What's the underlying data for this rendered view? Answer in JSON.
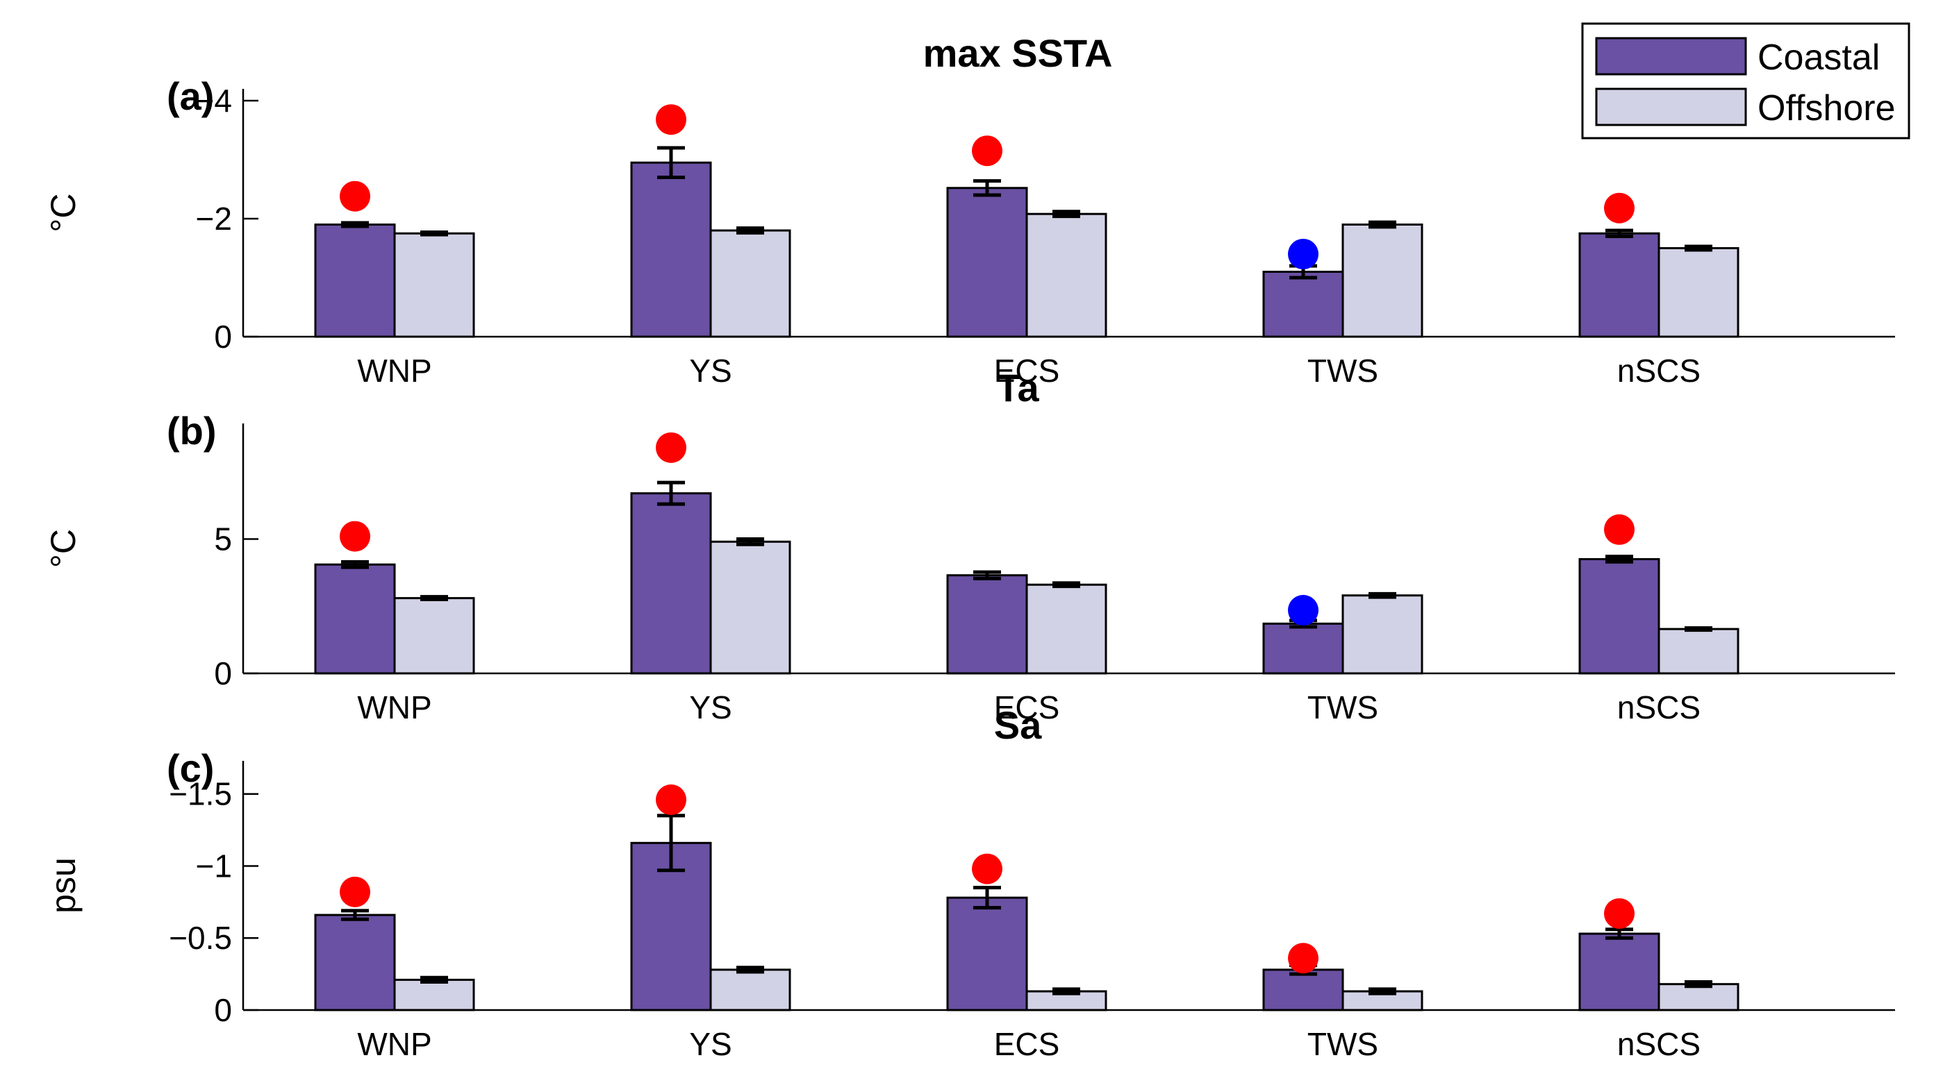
{
  "colors": {
    "coastal": "#6a51a3",
    "offshore": "#d2d2e6",
    "marker_red": "#ff0000",
    "marker_blue": "#0000ff"
  },
  "legend": {
    "placement": "top-right",
    "entries": [
      "Coastal",
      "Offshore"
    ]
  },
  "chart_data": [
    {
      "type": "bar",
      "panel_label": "(a)",
      "title": "max SSTA",
      "ylabel": "°C",
      "ylim": [
        0,
        -4.2
      ],
      "reversed_y": true,
      "yticks": [
        0,
        -2,
        -4
      ],
      "ytick_labels": [
        "0",
        "−2",
        "−4"
      ],
      "categories": [
        "WNP",
        "YS",
        "ECS",
        "TWS",
        "nSCS"
      ],
      "series": [
        {
          "name": "Coastal",
          "values": [
            -1.9,
            -2.95,
            -2.52,
            -1.1,
            -1.75
          ],
          "errors": [
            0.03,
            0.25,
            0.12,
            0.1,
            0.05
          ]
        },
        {
          "name": "Offshore",
          "values": [
            -1.75,
            -1.8,
            -2.08,
            -1.9,
            -1.5
          ],
          "errors": [
            0.02,
            0.04,
            0.04,
            0.04,
            0.03
          ]
        }
      ],
      "markers": [
        {
          "category": "WNP",
          "value": -2.38,
          "color": "red"
        },
        {
          "category": "YS",
          "value": -3.68,
          "color": "red"
        },
        {
          "category": "ECS",
          "value": -3.15,
          "color": "red"
        },
        {
          "category": "TWS",
          "value": -1.4,
          "color": "blue"
        },
        {
          "category": "nSCS",
          "value": -2.18,
          "color": "red"
        }
      ]
    },
    {
      "type": "bar",
      "panel_label": "(b)",
      "title": "Ta",
      "ylabel": "°C",
      "ylim": [
        0,
        9.3
      ],
      "reversed_y": false,
      "yticks": [
        0,
        5
      ],
      "ytick_labels": [
        "0",
        "5"
      ],
      "categories": [
        "WNP",
        "YS",
        "ECS",
        "TWS",
        "nSCS"
      ],
      "series": [
        {
          "name": "Coastal",
          "values": [
            4.05,
            6.7,
            3.65,
            1.85,
            4.25
          ],
          "errors": [
            0.1,
            0.4,
            0.12,
            0.12,
            0.1
          ]
        },
        {
          "name": "Offshore",
          "values": [
            2.8,
            4.9,
            3.3,
            2.9,
            1.65
          ],
          "errors": [
            0.05,
            0.1,
            0.06,
            0.06,
            0.04
          ]
        }
      ],
      "markers": [
        {
          "category": "WNP",
          "value": 5.1,
          "color": "red"
        },
        {
          "category": "YS",
          "value": 8.4,
          "color": "red"
        },
        {
          "category": "TWS",
          "value": 2.35,
          "color": "blue"
        },
        {
          "category": "nSCS",
          "value": 5.35,
          "color": "red"
        }
      ]
    },
    {
      "type": "bar",
      "panel_label": "(c)",
      "title": "Sa",
      "ylabel": "psu",
      "ylim": [
        0,
        -1.73
      ],
      "reversed_y": true,
      "yticks": [
        0,
        -0.5,
        -1,
        -1.5
      ],
      "ytick_labels": [
        "0",
        "−0.5",
        "−1",
        "−1.5"
      ],
      "categories": [
        "WNP",
        "YS",
        "ECS",
        "TWS",
        "nSCS"
      ],
      "series": [
        {
          "name": "Coastal",
          "values": [
            -0.66,
            -1.16,
            -0.78,
            -0.28,
            -0.53
          ],
          "errors": [
            0.03,
            0.19,
            0.07,
            0.03,
            0.03
          ]
        },
        {
          "name": "Offshore",
          "values": [
            -0.21,
            -0.28,
            -0.13,
            -0.13,
            -0.18
          ],
          "errors": [
            0.015,
            0.015,
            0.015,
            0.015,
            0.015
          ]
        }
      ],
      "markers": [
        {
          "category": "WNP",
          "value": -0.82,
          "color": "red"
        },
        {
          "category": "YS",
          "value": -1.46,
          "color": "red"
        },
        {
          "category": "ECS",
          "value": -0.98,
          "color": "red"
        },
        {
          "category": "TWS",
          "value": -0.36,
          "color": "red"
        },
        {
          "category": "nSCS",
          "value": -0.67,
          "color": "red"
        }
      ]
    }
  ]
}
